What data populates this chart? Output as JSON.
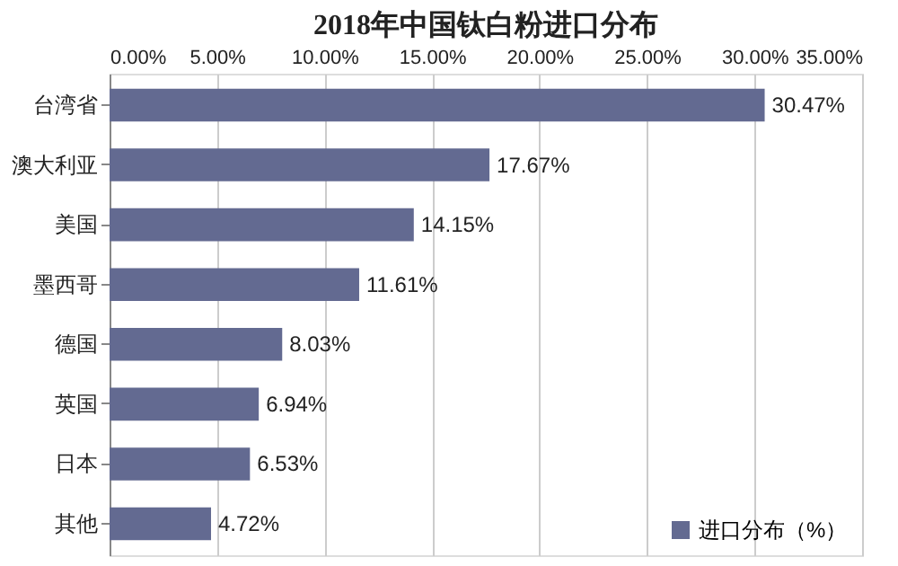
{
  "chart_data": {
    "type": "bar",
    "orientation": "horizontal",
    "title": "2018年中国钛白粉进口分布",
    "categories": [
      "台湾省",
      "澳大利亚",
      "美国",
      "墨西哥",
      "德国",
      "英国",
      "日本",
      "其他"
    ],
    "series": [
      {
        "name": "进口分布（%）",
        "color": "#636a91",
        "values": [
          30.47,
          17.67,
          14.15,
          11.61,
          8.03,
          6.94,
          6.53,
          4.72
        ],
        "value_labels": [
          "30.47%",
          "17.67%",
          "14.15%",
          "11.61%",
          "8.03%",
          "6.94%",
          "6.53%",
          "4.72%"
        ]
      }
    ],
    "xlim": [
      0,
      35
    ],
    "xticks": [
      {
        "value": 0,
        "label": "0.00%"
      },
      {
        "value": 5,
        "label": "5.00%"
      },
      {
        "value": 10,
        "label": "10.00%"
      },
      {
        "value": 15,
        "label": "15.00%"
      },
      {
        "value": 20,
        "label": "20.00%"
      },
      {
        "value": 25,
        "label": "25.00%"
      },
      {
        "value": 30,
        "label": "30.00%"
      },
      {
        "value": 35,
        "label": "35.00%"
      }
    ],
    "grid": "x",
    "legend": "bottom right"
  }
}
